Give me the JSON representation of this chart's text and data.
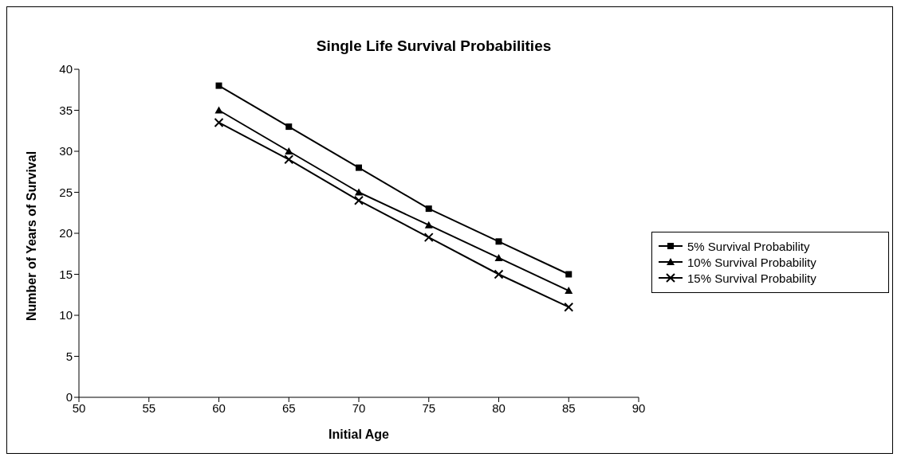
{
  "chart_data": {
    "type": "line",
    "title": "Single Life Survival Probabilities",
    "xlabel": "Initial  Age",
    "ylabel": "Number of Years of Survival",
    "x": [
      60,
      65,
      70,
      75,
      80,
      85
    ],
    "series": [
      {
        "name": "5% Survival Probability",
        "color": "#000000",
        "marker": "square",
        "values": [
          38,
          33,
          28,
          23,
          19,
          15
        ]
      },
      {
        "name": "10% Survival Probability",
        "color": "#000000",
        "marker": "triangle",
        "values": [
          35,
          30,
          25,
          21,
          17,
          13
        ]
      },
      {
        "name": "15% Survival Probability",
        "color": "#000000",
        "marker": "cross",
        "values": [
          33.5,
          29,
          24,
          19.5,
          15,
          11
        ]
      }
    ],
    "xlim": [
      50,
      90
    ],
    "xticks": [
      50,
      55,
      60,
      65,
      70,
      75,
      80,
      85,
      90
    ],
    "ylim": [
      0,
      40
    ],
    "yticks": [
      0,
      5,
      10,
      15,
      20,
      25,
      30,
      35,
      40
    ],
    "grid": false,
    "legend": "right",
    "line_style": "solid"
  }
}
